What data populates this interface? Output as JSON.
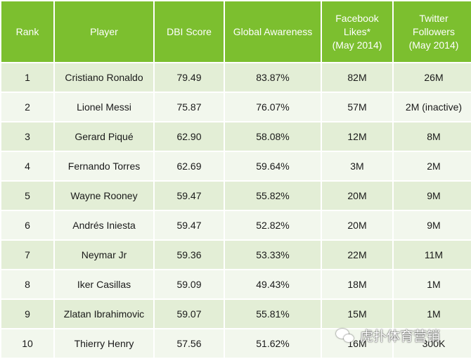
{
  "table": {
    "headers": {
      "rank": "Rank",
      "player": "Player",
      "dbi": "DBI Score",
      "awareness": "Global Awareness",
      "facebook": [
        "Facebook",
        "Likes*",
        "(May 2014)"
      ],
      "twitter": [
        "Twitter",
        "Followers",
        "(May 2014)"
      ]
    },
    "rows": [
      {
        "rank": "1",
        "player": "Cristiano Ronaldo",
        "dbi": "79.49",
        "awareness": "83.87%",
        "facebook": "82M",
        "twitter": "26M"
      },
      {
        "rank": "2",
        "player": "Lionel Messi",
        "dbi": "75.87",
        "awareness": "76.07%",
        "facebook": "57M",
        "twitter": "2M (inactive)"
      },
      {
        "rank": "3",
        "player": "Gerard Piqué",
        "dbi": "62.90",
        "awareness": "58.08%",
        "facebook": "12M",
        "twitter": "8M"
      },
      {
        "rank": "4",
        "player": "Fernando Torres",
        "dbi": "62.69",
        "awareness": "59.64%",
        "facebook": "3M",
        "twitter": "2M"
      },
      {
        "rank": "5",
        "player": "Wayne Rooney",
        "dbi": "59.47",
        "awareness": "55.82%",
        "facebook": "20M",
        "twitter": "9M"
      },
      {
        "rank": "6",
        "player": "Andrés Iniesta",
        "dbi": "59.47",
        "awareness": "52.82%",
        "facebook": "20M",
        "twitter": "9M"
      },
      {
        "rank": "7",
        "player": "Neymar Jr",
        "dbi": "59.36",
        "awareness": "53.33%",
        "facebook": "22M",
        "twitter": "11M"
      },
      {
        "rank": "8",
        "player": "Iker Casillas",
        "dbi": "59.09",
        "awareness": "49.43%",
        "facebook": "18M",
        "twitter": "1M"
      },
      {
        "rank": "9",
        "player": "Zlatan Ibrahimovic",
        "dbi": "59.07",
        "awareness": "55.81%",
        "facebook": "15M",
        "twitter": "1M"
      },
      {
        "rank": "10",
        "player": "Thierry Henry",
        "dbi": "57.56",
        "awareness": "51.62%",
        "facebook": "16M",
        "twitter": "300K"
      }
    ]
  },
  "watermark": {
    "icon": "wechat-icon",
    "text": "虎扑体育营销"
  },
  "colors": {
    "header": "#7cbf2f",
    "row_odd": "#e3eed6",
    "row_even": "#f2f7ed"
  }
}
